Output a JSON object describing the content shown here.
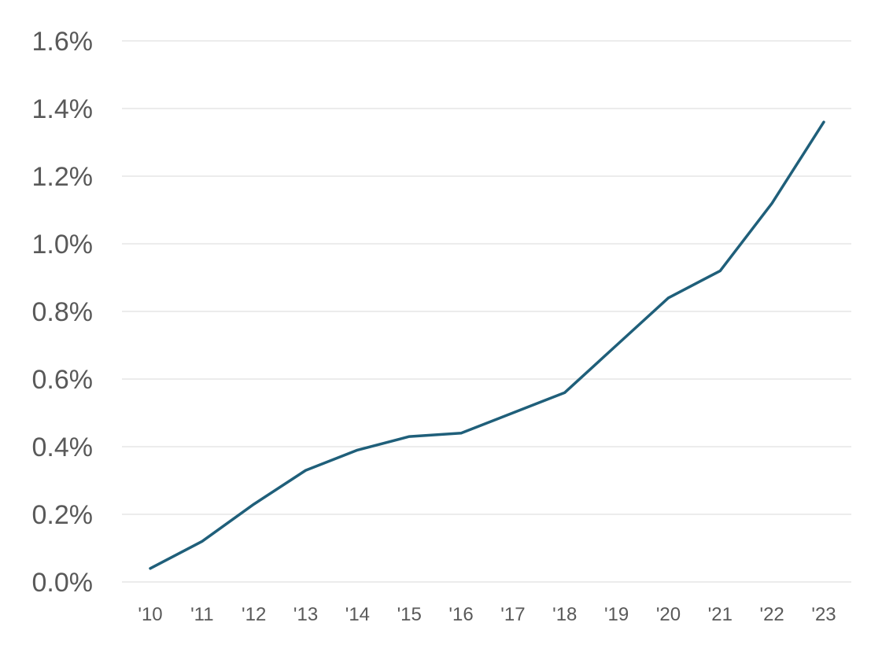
{
  "chart_data": {
    "type": "line",
    "title": "",
    "xlabel": "",
    "ylabel": "",
    "categories": [
      "'10",
      "'11",
      "'12",
      "'13",
      "'14",
      "'15",
      "'16",
      "'17",
      "'18",
      "'19",
      "'20",
      "'21",
      "'22",
      "'23"
    ],
    "series": [
      {
        "values": [
          0.04,
          0.12,
          0.23,
          0.33,
          0.39,
          0.43,
          0.44,
          0.5,
          0.56,
          0.7,
          0.84,
          0.92,
          1.12,
          1.36
        ]
      }
    ],
    "ylim": [
      0,
      1.6
    ],
    "y_ticks": [
      "0.0%",
      "0.2%",
      "0.4%",
      "0.6%",
      "0.8%",
      "1.0%",
      "1.2%",
      "1.4%",
      "1.6%"
    ],
    "y_tick_values": [
      0,
      0.2,
      0.4,
      0.6,
      0.8,
      1.0,
      1.2,
      1.4,
      1.6
    ],
    "grid": true,
    "legend": "none",
    "colors": {
      "line": "#1f5f7a",
      "grid": "#e6e6e6",
      "text": "#595959"
    }
  }
}
